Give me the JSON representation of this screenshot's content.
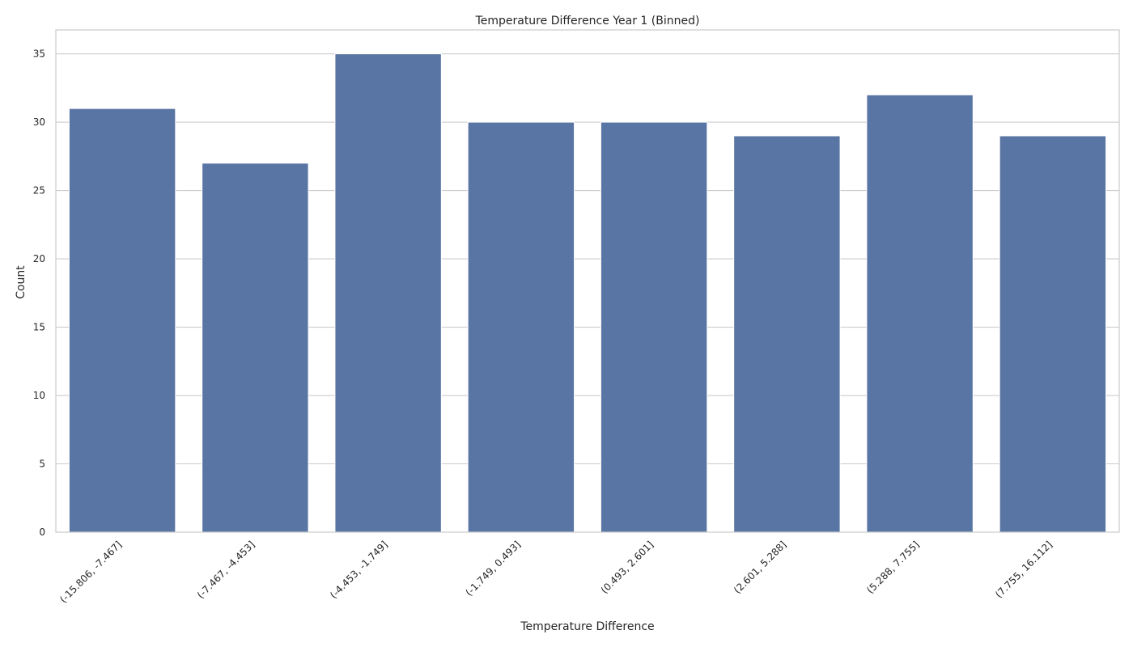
{
  "chart_data": {
    "type": "bar",
    "title": "Temperature Difference Year 1 (Binned)",
    "xlabel": "Temperature Difference",
    "ylabel": "Count",
    "categories": [
      "(-15.806, -7.467]",
      "(-7.467, -4.453]",
      "(-4.453, -1.749]",
      "(-1.749, 0.493]",
      "(0.493, 2.601]",
      "(2.601, 5.288]",
      "(5.288, 7.755]",
      "(7.755, 16.112]"
    ],
    "values": [
      31,
      27,
      35,
      30,
      30,
      29,
      32,
      29
    ],
    "ylim": [
      0,
      36.75
    ],
    "yticks": [
      0,
      5,
      10,
      15,
      20,
      25,
      30,
      35
    ],
    "grid": true,
    "bar_color": "#5975a4",
    "bar_edge_color": "#ffffff",
    "grid_color": "#cccccc",
    "spine_color": "#cccccc"
  }
}
